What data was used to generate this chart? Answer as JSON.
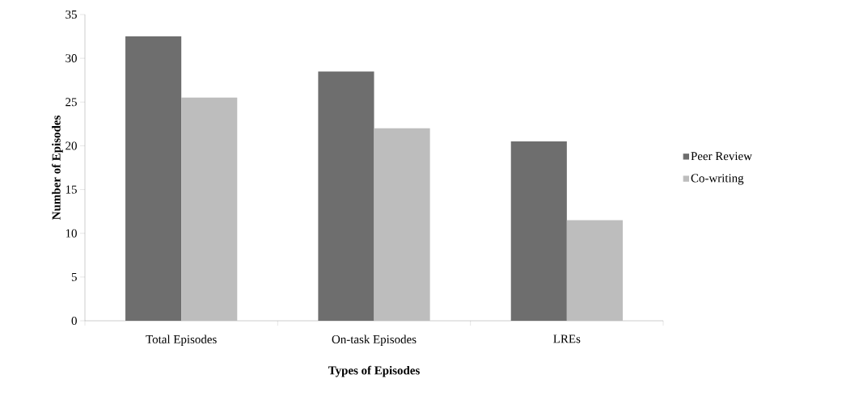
{
  "chart_data": {
    "type": "bar",
    "xlabel": "Types of Episodes",
    "ylabel": "Number of Episodes",
    "categories": [
      "Total Episodes",
      "On-task Episodes",
      "LREs"
    ],
    "series": [
      {
        "name": "Peer Review",
        "color": "#6e6e6e",
        "values": [
          32.5,
          28.5,
          20.5
        ]
      },
      {
        "name": "Co-writing",
        "color": "#bdbdbd",
        "values": [
          25.5,
          22,
          11.5
        ]
      }
    ],
    "ylim": [
      0,
      35
    ],
    "yticks": [
      0,
      5,
      10,
      15,
      20,
      25,
      30,
      35
    ],
    "legend": "right"
  }
}
